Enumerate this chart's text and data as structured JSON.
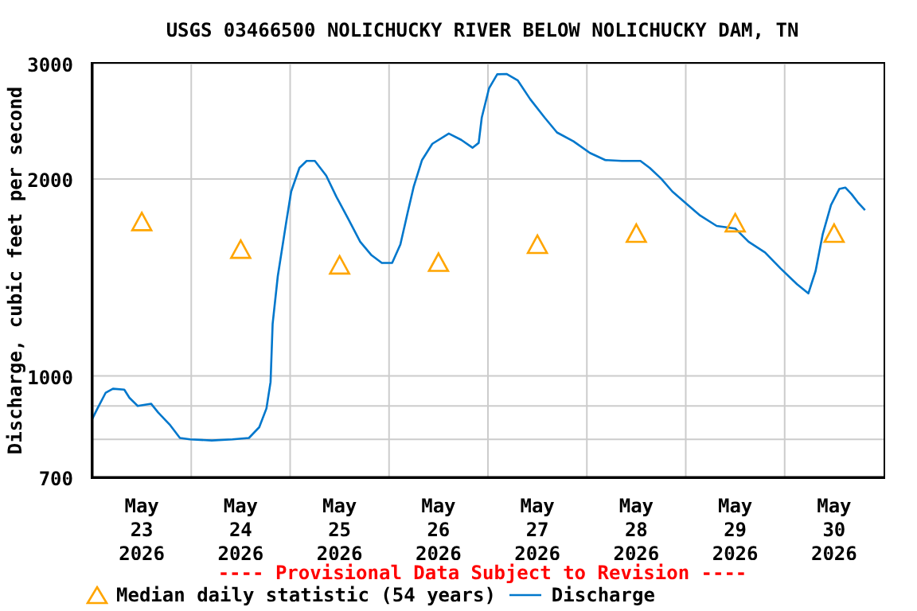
{
  "chart_data": {
    "type": "line",
    "title": "USGS 03466500 NOLICHUCKY RIVER BELOW NOLICHUCKY DAM, TN",
    "ylabel": "Discharge, cubic feet per second",
    "annotations": [
      "---- Provisional Data Subject to Revision ----"
    ],
    "log": "y",
    "grid": true,
    "legend": "bottom",
    "xlim": [
      "2026-05-23T00:00",
      "2026-05-31T00:00"
    ],
    "xticks": [
      {
        "value": "2026-05-23T12:00",
        "label": "May 23 2026"
      },
      {
        "value": "2026-05-24T12:00",
        "label": "May 24 2026"
      },
      {
        "value": "2026-05-25T12:00",
        "label": "May 25 2026"
      },
      {
        "value": "2026-05-26T12:00",
        "label": "May 26 2026"
      },
      {
        "value": "2026-05-27T12:00",
        "label": "May 27 2026"
      },
      {
        "value": "2026-05-28T12:00",
        "label": "May 28 2026"
      },
      {
        "value": "2026-05-29T12:00",
        "label": "May 29 2026"
      },
      {
        "value": "2026-05-30T12:00",
        "label": "May 30 2026"
      },
      {
        "value": "2026-05-24T00:00",
        "label": null
      },
      {
        "value": "2026-05-25T00:00",
        "label": null
      },
      {
        "value": "2026-05-26T00:00",
        "label": null
      },
      {
        "value": "2026-05-27T00:00",
        "label": null
      },
      {
        "value": "2026-05-28T00:00",
        "label": null
      },
      {
        "value": "2026-05-29T00:00",
        "label": null
      },
      {
        "value": "2026-05-30T00:00",
        "label": null
      }
    ],
    "ylim": [
      700,
      3000
    ],
    "yticks": [
      700,
      {
        "value": 800,
        "label": null
      },
      {
        "value": 900,
        "label": null
      },
      1000,
      2000,
      3000
    ],
    "series": [
      {
        "name": "Median daily statistic (54 years)",
        "type": "scatter",
        "marker": "triangle",
        "color": "#ffa500",
        "x": [
          "2026-05-23T12:00",
          "2026-05-24T12:00",
          "2026-05-25T12:00",
          "2026-05-26T12:00",
          "2026-05-27T12:00",
          "2026-05-28T12:00",
          "2026-05-29T12:00",
          "2026-05-30T12:00"
        ],
        "values": [
          1717,
          1558,
          1474,
          1488,
          1585,
          1648,
          1710,
          1648
        ]
      },
      {
        "name": "Discharge",
        "marker": "none",
        "line_style": "solid",
        "color": "#0077cc",
        "x": [
          "2026-05-23T00:00",
          "2026-05-23T01:15",
          "2026-05-23T03:15",
          "2026-05-23T05:00",
          "2026-05-23T07:45",
          "2026-05-23T09:00",
          "2026-05-23T11:00",
          "2026-05-23T14:15",
          "2026-05-23T16:00",
          "2026-05-23T18:45",
          "2026-05-23T21:15",
          "2026-05-23T23:45",
          "2026-05-24T05:00",
          "2026-05-24T10:00",
          "2026-05-24T14:00",
          "2026-05-24T16:30",
          "2026-05-24T18:15",
          "2026-05-24T19:15",
          "2026-05-24T19:45",
          "2026-05-24T21:00",
          "2026-05-24T23:00",
          "2026-05-25T00:15",
          "2026-05-25T02:15",
          "2026-05-25T04:00",
          "2026-05-25T06:00",
          "2026-05-25T08:45",
          "2026-05-25T11:15",
          "2026-05-25T14:00",
          "2026-05-25T17:00",
          "2026-05-25T19:45",
          "2026-05-25T22:15",
          "2026-05-26T00:45",
          "2026-05-26T02:45",
          "2026-05-26T04:30",
          "2026-05-26T06:00",
          "2026-05-26T08:00",
          "2026-05-26T10:30",
          "2026-05-26T14:30",
          "2026-05-26T17:30",
          "2026-05-26T20:15",
          "2026-05-26T21:45",
          "2026-05-26T22:30",
          "2026-05-27T00:15",
          "2026-05-27T02:15",
          "2026-05-27T04:30",
          "2026-05-27T07:15",
          "2026-05-27T10:15",
          "2026-05-27T13:45",
          "2026-05-27T16:45",
          "2026-05-27T20:45",
          "2026-05-28T00:45",
          "2026-05-28T04:30",
          "2026-05-28T08:30",
          "2026-05-28T13:00",
          "2026-05-28T15:15",
          "2026-05-28T18:00",
          "2026-05-28T20:45",
          "2026-05-28T23:45",
          "2026-05-29T03:30",
          "2026-05-29T07:30",
          "2026-05-29T12:00",
          "2026-05-29T15:15",
          "2026-05-29T19:15",
          "2026-05-29T23:00",
          "2026-05-30T03:00",
          "2026-05-30T05:45",
          "2026-05-30T07:30",
          "2026-05-30T09:15",
          "2026-05-30T11:15",
          "2026-05-30T13:15",
          "2026-05-30T14:45",
          "2026-05-30T16:15",
          "2026-05-30T17:45",
          "2026-05-30T19:30"
        ],
        "values": [
          860,
          892,
          943,
          956,
          953,
          926,
          900,
          907,
          879,
          843,
          804,
          800,
          797,
          800,
          804,
          835,
          892,
          979,
          1201,
          1420,
          1710,
          1913,
          2079,
          2131,
          2131,
          2023,
          1877,
          1743,
          1603,
          1529,
          1488,
          1488,
          1588,
          1775,
          1948,
          2137,
          2263,
          2346,
          2295,
          2232,
          2270,
          2482,
          2749,
          2890,
          2893,
          2827,
          2648,
          2482,
          2355,
          2283,
          2191,
          2137,
          2131,
          2131,
          2079,
          2003,
          1913,
          1842,
          1758,
          1695,
          1680,
          1603,
          1544,
          1460,
          1381,
          1337,
          1446,
          1648,
          1825,
          1930,
          1940,
          1895,
          1842,
          1792
        ]
      }
    ]
  }
}
